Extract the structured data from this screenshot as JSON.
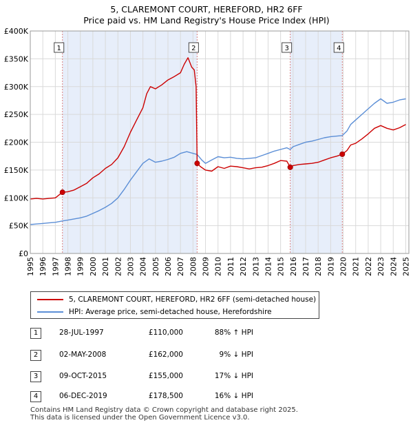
{
  "chart_data": {
    "type": "line",
    "title": "5, CLAREMONT COURT, HEREFORD, HR2 6FF",
    "subtitle": "Price paid vs. HM Land Registry's House Price Index (HPI)",
    "xlabel": "",
    "ylabel": "",
    "xlim": [
      1995,
      2025.25
    ],
    "ylim": [
      0,
      400000
    ],
    "x_ticks": [
      1995,
      1996,
      1997,
      1998,
      1999,
      2000,
      2001,
      2002,
      2003,
      2004,
      2005,
      2006,
      2007,
      2008,
      2009,
      2010,
      2011,
      2012,
      2013,
      2014,
      2015,
      2016,
      2017,
      2018,
      2019,
      2020,
      2021,
      2022,
      2023,
      2024,
      2025
    ],
    "y_ticks": [
      {
        "value": 0,
        "label": "£0"
      },
      {
        "value": 50000,
        "label": "£50K"
      },
      {
        "value": 100000,
        "label": "£100K"
      },
      {
        "value": 150000,
        "label": "£150K"
      },
      {
        "value": 200000,
        "label": "£200K"
      },
      {
        "value": 250000,
        "label": "£250K"
      },
      {
        "value": 300000,
        "label": "£300K"
      },
      {
        "value": 350000,
        "label": "£350K"
      },
      {
        "value": 400000,
        "label": "£400K"
      }
    ],
    "series": [
      {
        "name": "5, CLAREMONT COURT, HEREFORD, HR2 6FF (semi-detached house)",
        "color": "#cc0000",
        "x": [
          1995.0,
          1995.5,
          1996.0,
          1996.5,
          1997.0,
          1997.57,
          1998.0,
          1998.5,
          1999.0,
          1999.5,
          2000.0,
          2000.5,
          2001.0,
          2001.5,
          2002.0,
          2002.5,
          2003.0,
          2003.5,
          2004.0,
          2004.3,
          2004.6,
          2005.0,
          2005.5,
          2006.0,
          2006.5,
          2007.0,
          2007.3,
          2007.6,
          2007.9,
          2008.1,
          2008.25,
          2008.33,
          2008.6,
          2009.0,
          2009.5,
          2010.0,
          2010.5,
          2011.0,
          2011.5,
          2012.0,
          2012.5,
          2013.0,
          2013.5,
          2014.0,
          2014.5,
          2015.0,
          2015.5,
          2015.77,
          2016.0,
          2016.5,
          2017.0,
          2017.5,
          2018.0,
          2018.5,
          2019.0,
          2019.5,
          2019.93,
          2020.3,
          2020.6,
          2021.0,
          2021.5,
          2022.0,
          2022.5,
          2023.0,
          2023.5,
          2024.0,
          2024.5,
          2025.0
        ],
        "y": [
          98000,
          99000,
          98000,
          99000,
          100000,
          110000,
          111000,
          114000,
          120000,
          126000,
          136000,
          143000,
          153000,
          160000,
          172000,
          192000,
          218000,
          240000,
          262000,
          287000,
          300000,
          296000,
          303000,
          312000,
          318000,
          325000,
          340000,
          352000,
          335000,
          330000,
          300000,
          162000,
          156000,
          150000,
          148000,
          156000,
          153000,
          157000,
          156000,
          154000,
          152000,
          154000,
          155000,
          158000,
          162000,
          167000,
          166000,
          155000,
          158000,
          160000,
          161000,
          162000,
          164000,
          168000,
          172000,
          175000,
          178500,
          185000,
          195000,
          198000,
          206000,
          215000,
          225000,
          230000,
          225000,
          222000,
          226000,
          232000
        ]
      },
      {
        "name": "HPI: Average price, semi-detached house, Herefordshire",
        "color": "#5b8ed6",
        "x": [
          1995.0,
          1995.5,
          1996.0,
          1996.5,
          1997.0,
          1997.57,
          1998.0,
          1998.5,
          1999.0,
          1999.5,
          2000.0,
          2000.5,
          2001.0,
          2001.5,
          2002.0,
          2002.5,
          2003.0,
          2003.5,
          2004.0,
          2004.5,
          2005.0,
          2005.5,
          2006.0,
          2006.5,
          2007.0,
          2007.5,
          2008.0,
          2008.33,
          2008.7,
          2009.0,
          2009.5,
          2010.0,
          2010.5,
          2011.0,
          2011.5,
          2012.0,
          2012.5,
          2013.0,
          2013.5,
          2014.0,
          2014.5,
          2015.0,
          2015.5,
          2015.77,
          2016.0,
          2016.5,
          2017.0,
          2017.5,
          2018.0,
          2018.5,
          2019.0,
          2019.5,
          2019.93,
          2020.3,
          2020.6,
          2021.0,
          2021.5,
          2022.0,
          2022.5,
          2023.0,
          2023.5,
          2024.0,
          2024.5,
          2025.0
        ],
        "y": [
          52000,
          53000,
          54000,
          55000,
          56000,
          58500,
          60000,
          62000,
          64000,
          67000,
          72000,
          77000,
          83000,
          90000,
          100000,
          115000,
          132000,
          147000,
          162000,
          170000,
          164000,
          166000,
          169000,
          173000,
          180000,
          183000,
          180000,
          178000,
          168000,
          162000,
          168000,
          174000,
          172000,
          173000,
          171000,
          170000,
          171000,
          172000,
          176000,
          180000,
          184000,
          187000,
          190000,
          187000,
          192000,
          196000,
          200000,
          202000,
          205000,
          208000,
          210000,
          211000,
          212000,
          220000,
          232000,
          240000,
          250000,
          260000,
          270000,
          278000,
          270000,
          272000,
          276000,
          278000
        ]
      }
    ],
    "markers": [
      {
        "label": "1",
        "x": 1997.57,
        "y": 110000
      },
      {
        "label": "2",
        "x": 2008.33,
        "y": 162000
      },
      {
        "label": "3",
        "x": 2015.77,
        "y": 155000
      },
      {
        "label": "4",
        "x": 2019.93,
        "y": 178500
      }
    ],
    "shaded_spans": [
      [
        1997.57,
        2008.33
      ],
      [
        2015.77,
        2019.93
      ]
    ],
    "legend_position": "below-chart"
  },
  "legend": {
    "property_label": "5, CLAREMONT COURT, HEREFORD, HR2 6FF (semi-detached house)",
    "hpi_label": "HPI: Average price, semi-detached house, Herefordshire",
    "property_color": "#cc0000",
    "hpi_color": "#5b8ed6"
  },
  "transactions": [
    {
      "num": "1",
      "date": "28-JUL-1997",
      "price": "£110,000",
      "hpi": "88% ↑ HPI"
    },
    {
      "num": "2",
      "date": "02-MAY-2008",
      "price": "£162,000",
      "hpi": "9% ↓ HPI"
    },
    {
      "num": "3",
      "date": "09-OCT-2015",
      "price": "£155,000",
      "hpi": "17% ↓ HPI"
    },
    {
      "num": "4",
      "date": "06-DEC-2019",
      "price": "£178,500",
      "hpi": "16% ↓ HPI"
    }
  ],
  "footer": {
    "line1": "Contains HM Land Registry data © Crown copyright and database right 2025.",
    "line2": "This data is licensed under the Open Government Licence v3.0."
  },
  "colors": {
    "background": "#ffffff",
    "plot_background": "#ffffff",
    "shade": "#e7eefa",
    "grid": "#d9d9d9",
    "vline": "#d98080"
  }
}
